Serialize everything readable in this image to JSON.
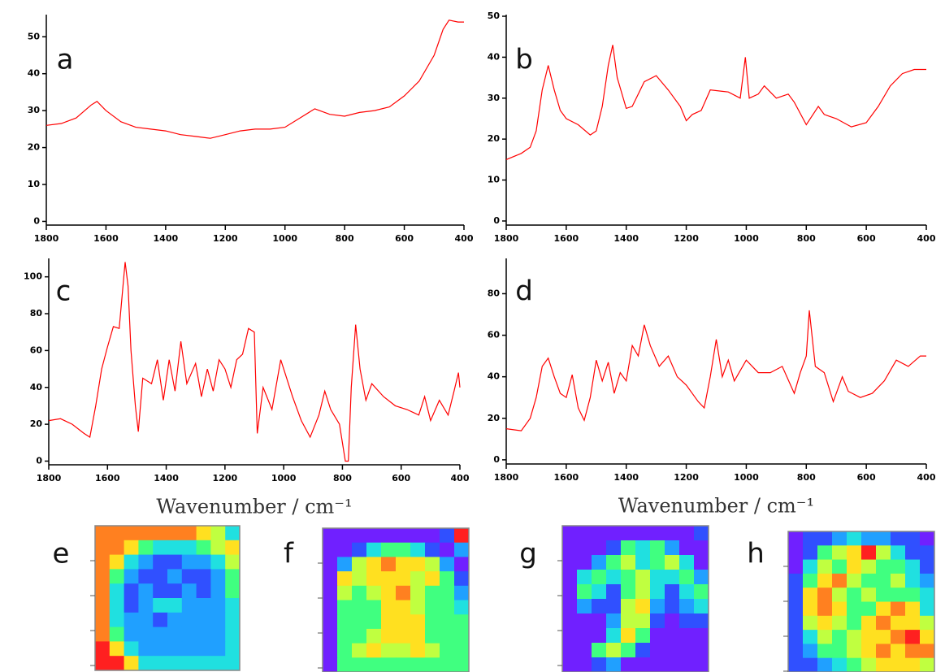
{
  "chart_data": [
    {
      "type": "line",
      "label": "a",
      "color": "#ff0000",
      "x": [
        1800,
        1750,
        1700,
        1650,
        1630,
        1600,
        1550,
        1500,
        1450,
        1400,
        1350,
        1300,
        1250,
        1200,
        1150,
        1100,
        1050,
        1000,
        950,
        900,
        850,
        800,
        750,
        700,
        650,
        600,
        550,
        500,
        470,
        450,
        420,
        400
      ],
      "values": [
        26,
        26.5,
        28,
        31.5,
        32.5,
        30,
        27,
        25.5,
        25,
        24.5,
        23.5,
        23,
        22.5,
        23.5,
        24.5,
        25,
        25,
        25.5,
        28,
        30.5,
        29,
        28.5,
        29.5,
        30,
        31,
        34,
        38,
        45,
        52,
        54.5,
        54,
        54
      ],
      "xlim": [
        1800,
        400
      ],
      "xticks": [
        1800,
        1600,
        1400,
        1200,
        1000,
        800,
        600,
        400
      ],
      "ylim": [
        -1,
        56
      ],
      "yticks": [
        0,
        10,
        20,
        30,
        40,
        50
      ]
    },
    {
      "type": "line",
      "label": "b",
      "color": "#ff0000",
      "x": [
        1800,
        1750,
        1720,
        1700,
        1680,
        1660,
        1640,
        1620,
        1600,
        1560,
        1520,
        1500,
        1480,
        1460,
        1445,
        1430,
        1400,
        1380,
        1340,
        1300,
        1260,
        1220,
        1200,
        1180,
        1150,
        1120,
        1060,
        1020,
        1003,
        990,
        960,
        940,
        900,
        860,
        840,
        800,
        760,
        740,
        700,
        650,
        600,
        560,
        520,
        480,
        440,
        400
      ],
      "values": [
        15,
        16.5,
        18,
        22,
        32,
        38,
        32,
        27,
        25,
        23.5,
        21,
        22,
        28,
        38,
        43,
        35,
        27.5,
        28,
        34,
        35.5,
        32,
        28,
        24.5,
        26,
        27,
        32,
        31.5,
        30,
        40,
        30,
        31,
        33,
        30,
        31,
        29,
        23.5,
        28,
        26,
        25,
        23,
        24,
        28,
        33,
        36,
        37,
        37
      ],
      "xlim": [
        1800,
        400
      ],
      "xticks": [
        1800,
        1600,
        1400,
        1200,
        1000,
        800,
        600,
        400
      ],
      "ylim": [
        -1,
        50.4
      ],
      "yticks": [
        0,
        10,
        20,
        30,
        40,
        50
      ]
    },
    {
      "type": "line",
      "label": "c",
      "color": "#ff0000",
      "xlabel": "Wavenumber / cm⁻¹",
      "x": [
        1800,
        1760,
        1720,
        1680,
        1660,
        1640,
        1620,
        1600,
        1580,
        1560,
        1540,
        1530,
        1520,
        1505,
        1495,
        1480,
        1450,
        1430,
        1410,
        1390,
        1370,
        1350,
        1330,
        1300,
        1280,
        1260,
        1240,
        1220,
        1200,
        1180,
        1160,
        1140,
        1120,
        1100,
        1090,
        1070,
        1040,
        1010,
        990,
        970,
        940,
        910,
        880,
        860,
        840,
        810,
        790,
        780,
        770,
        755,
        740,
        720,
        700,
        660,
        620,
        580,
        540,
        520,
        500,
        470,
        440,
        420,
        405,
        400
      ],
      "values": [
        22,
        23,
        20,
        15,
        13,
        30,
        50,
        62,
        73,
        72,
        108,
        95,
        60,
        30,
        16,
        45,
        42,
        55,
        33,
        55,
        38,
        65,
        42,
        53,
        35,
        50,
        38,
        55,
        50,
        40,
        55,
        58,
        72,
        70,
        15,
        40,
        28,
        55,
        45,
        35,
        22,
        13,
        25,
        38,
        28,
        20,
        0,
        0,
        40,
        74,
        50,
        33,
        42,
        35,
        30,
        28,
        25,
        35,
        22,
        33,
        25,
        38,
        48,
        40
      ],
      "xlim": [
        1800,
        400
      ],
      "xticks": [
        1800,
        1600,
        1400,
        1200,
        1000,
        800,
        600,
        400
      ],
      "ylim": [
        -2,
        110
      ],
      "yticks": [
        0,
        20,
        40,
        60,
        80,
        100
      ]
    },
    {
      "type": "line",
      "label": "d",
      "color": "#ff0000",
      "xlabel": "Wavenumber / cm⁻¹",
      "x": [
        1800,
        1750,
        1720,
        1700,
        1680,
        1660,
        1640,
        1620,
        1600,
        1580,
        1560,
        1540,
        1520,
        1500,
        1480,
        1460,
        1440,
        1420,
        1400,
        1380,
        1360,
        1340,
        1320,
        1290,
        1260,
        1230,
        1200,
        1160,
        1140,
        1120,
        1100,
        1080,
        1060,
        1040,
        1000,
        960,
        920,
        880,
        840,
        820,
        800,
        790,
        770,
        740,
        710,
        680,
        660,
        620,
        580,
        540,
        500,
        460,
        420,
        400
      ],
      "values": [
        15,
        14,
        20,
        30,
        45,
        49,
        40,
        32,
        30,
        41,
        25,
        19,
        30,
        48,
        38,
        47,
        32,
        42,
        38,
        55,
        50,
        65,
        55,
        45,
        50,
        40,
        36,
        28,
        25,
        40,
        58,
        40,
        48,
        38,
        48,
        42,
        42,
        45,
        32,
        42,
        50,
        72,
        45,
        42,
        28,
        40,
        33,
        30,
        32,
        38,
        48,
        45,
        50,
        50
      ],
      "xlim": [
        1800,
        400
      ],
      "xticks": [
        1800,
        1600,
        1400,
        1200,
        1000,
        800,
        600,
        400
      ],
      "ylim": [
        -2,
        97
      ],
      "yticks": [
        0,
        20,
        40,
        60,
        80
      ]
    },
    {
      "type": "heatmap",
      "label": "e",
      "colors": [
        "#7020ff",
        "#3050ff",
        "#20a0ff",
        "#20e0e0",
        "#40ff80",
        "#c0ff40",
        "#ffe020",
        "#ff8020",
        "#ff2020"
      ],
      "values": [
        [
          7,
          7,
          7,
          7,
          7,
          7,
          7,
          6,
          5,
          3
        ],
        [
          7,
          7,
          6,
          4,
          3,
          3,
          3,
          4,
          5,
          6
        ],
        [
          7,
          6,
          3,
          2,
          1,
          1,
          2,
          2,
          3,
          5
        ],
        [
          7,
          4,
          2,
          1,
          1,
          2,
          1,
          1,
          2,
          4
        ],
        [
          7,
          3,
          1,
          2,
          1,
          1,
          2,
          1,
          2,
          4
        ],
        [
          7,
          3,
          1,
          2,
          3,
          3,
          2,
          2,
          2,
          3
        ],
        [
          7,
          3,
          2,
          2,
          1,
          2,
          2,
          2,
          2,
          3
        ],
        [
          7,
          4,
          2,
          2,
          2,
          2,
          2,
          2,
          2,
          3
        ],
        [
          8,
          6,
          3,
          2,
          2,
          2,
          2,
          2,
          2,
          3
        ],
        [
          8,
          8,
          6,
          3,
          3,
          3,
          3,
          3,
          3,
          3
        ]
      ]
    },
    {
      "type": "heatmap",
      "label": "f",
      "colors": [
        "#7020ff",
        "#3050ff",
        "#20a0ff",
        "#20e0e0",
        "#40ff80",
        "#c0ff40",
        "#ffe020",
        "#ff8020",
        "#ff2020"
      ],
      "values": [
        [
          0,
          0,
          0,
          0,
          0,
          0,
          0,
          0,
          1,
          8
        ],
        [
          0,
          0,
          1,
          3,
          4,
          4,
          3,
          1,
          0,
          2
        ],
        [
          0,
          2,
          5,
          6,
          7,
          6,
          6,
          5,
          2,
          0
        ],
        [
          0,
          6,
          5,
          6,
          6,
          6,
          5,
          6,
          4,
          1
        ],
        [
          0,
          5,
          4,
          5,
          6,
          7,
          5,
          4,
          4,
          2
        ],
        [
          0,
          4,
          4,
          4,
          6,
          6,
          5,
          4,
          4,
          3
        ],
        [
          0,
          4,
          4,
          4,
          6,
          6,
          6,
          4,
          4,
          4
        ],
        [
          0,
          4,
          4,
          5,
          6,
          6,
          6,
          4,
          4,
          4
        ],
        [
          0,
          4,
          5,
          6,
          5,
          5,
          6,
          5,
          4,
          4
        ],
        [
          0,
          4,
          4,
          4,
          4,
          4,
          4,
          4,
          4,
          4
        ]
      ]
    },
    {
      "type": "heatmap",
      "label": "g",
      "colors": [
        "#7020ff",
        "#3050ff",
        "#20a0ff",
        "#20e0e0",
        "#40ff80",
        "#c0ff40",
        "#ffe020",
        "#ff8020",
        "#ff2020"
      ],
      "values": [
        [
          0,
          0,
          0,
          0,
          0,
          0,
          0,
          0,
          0,
          1
        ],
        [
          0,
          0,
          0,
          1,
          4,
          3,
          4,
          2,
          0,
          0
        ],
        [
          0,
          0,
          2,
          4,
          5,
          3,
          4,
          5,
          3,
          0
        ],
        [
          0,
          3,
          4,
          3,
          4,
          5,
          3,
          3,
          4,
          2
        ],
        [
          0,
          4,
          3,
          1,
          4,
          5,
          3,
          1,
          3,
          4
        ],
        [
          0,
          2,
          1,
          1,
          5,
          6,
          2,
          1,
          2,
          3
        ],
        [
          0,
          0,
          0,
          2,
          5,
          5,
          1,
          0,
          1,
          1
        ],
        [
          0,
          0,
          0,
          3,
          6,
          4,
          0,
          0,
          0,
          0
        ],
        [
          0,
          0,
          4,
          5,
          4,
          1,
          0,
          0,
          0,
          0
        ],
        [
          0,
          0,
          1,
          2,
          0,
          0,
          0,
          0,
          0,
          0
        ]
      ]
    },
    {
      "type": "heatmap",
      "label": "h",
      "colors": [
        "#7020ff",
        "#3050ff",
        "#20a0ff",
        "#20e0e0",
        "#40ff80",
        "#c0ff40",
        "#ffe020",
        "#ff8020",
        "#ff2020"
      ],
      "values": [
        [
          0,
          1,
          1,
          2,
          3,
          2,
          2,
          1,
          1,
          0
        ],
        [
          0,
          1,
          4,
          5,
          6,
          8,
          5,
          3,
          1,
          1
        ],
        [
          0,
          3,
          5,
          4,
          6,
          5,
          4,
          4,
          3,
          1
        ],
        [
          1,
          4,
          6,
          7,
          5,
          4,
          4,
          5,
          3,
          2
        ],
        [
          1,
          6,
          7,
          5,
          4,
          5,
          4,
          4,
          4,
          3
        ],
        [
          1,
          6,
          7,
          6,
          4,
          4,
          6,
          7,
          6,
          3
        ],
        [
          1,
          5,
          6,
          5,
          4,
          6,
          7,
          6,
          6,
          5
        ],
        [
          1,
          3,
          5,
          4,
          5,
          6,
          6,
          7,
          8,
          6
        ],
        [
          1,
          2,
          4,
          4,
          5,
          6,
          7,
          6,
          7,
          7
        ],
        [
          1,
          1,
          2,
          3,
          4,
          5,
          6,
          6,
          6,
          5
        ]
      ]
    }
  ]
}
